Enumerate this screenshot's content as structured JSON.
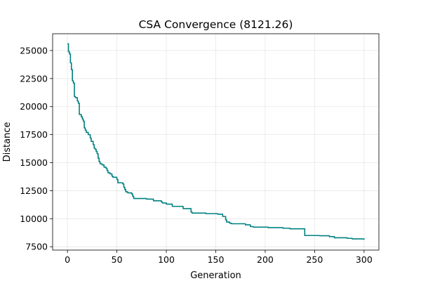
{
  "chart_data": {
    "type": "line",
    "title": "CSA Convergence (8121.26)",
    "xlabel": "Generation",
    "ylabel": "Distance",
    "xlim": [
      -15,
      315
    ],
    "ylim": [
      7200,
      26500
    ],
    "xticks": [
      0,
      50,
      100,
      150,
      200,
      250,
      300
    ],
    "yticks": [
      7500,
      10000,
      12500,
      15000,
      17500,
      20000,
      22500,
      25000
    ],
    "grid": true,
    "series": [
      {
        "color": "#008080",
        "step": true,
        "points": [
          [
            0,
            25600
          ],
          [
            1,
            24900
          ],
          [
            2,
            24700
          ],
          [
            3,
            23900
          ],
          [
            4,
            23300
          ],
          [
            5,
            22300
          ],
          [
            6,
            22100
          ],
          [
            7,
            20900
          ],
          [
            8,
            20800
          ],
          [
            10,
            20500
          ],
          [
            11,
            20300
          ],
          [
            12,
            19300
          ],
          [
            14,
            19100
          ],
          [
            15,
            18900
          ],
          [
            16,
            18700
          ],
          [
            17,
            18100
          ],
          [
            18,
            17900
          ],
          [
            19,
            17700
          ],
          [
            21,
            17500
          ],
          [
            23,
            17200
          ],
          [
            24,
            16900
          ],
          [
            26,
            16600
          ],
          [
            27,
            16300
          ],
          [
            28,
            16200
          ],
          [
            29,
            16000
          ],
          [
            30,
            15800
          ],
          [
            31,
            15400
          ],
          [
            32,
            15100
          ],
          [
            33,
            14900
          ],
          [
            35,
            14800
          ],
          [
            37,
            14600
          ],
          [
            39,
            14500
          ],
          [
            40,
            14300
          ],
          [
            41,
            14100
          ],
          [
            43,
            14000
          ],
          [
            45,
            13800
          ],
          [
            46,
            13700
          ],
          [
            50,
            13500
          ],
          [
            51,
            13200
          ],
          [
            56,
            13100
          ],
          [
            57,
            12800
          ],
          [
            58,
            12600
          ],
          [
            59,
            12400
          ],
          [
            61,
            12300
          ],
          [
            65,
            12200
          ],
          [
            66,
            12000
          ],
          [
            67,
            11800
          ],
          [
            80,
            11750
          ],
          [
            87,
            11600
          ],
          [
            95,
            11500
          ],
          [
            96,
            11400
          ],
          [
            100,
            11300
          ],
          [
            106,
            11100
          ],
          [
            117,
            10900
          ],
          [
            125,
            10600
          ],
          [
            126,
            10500
          ],
          [
            140,
            10450
          ],
          [
            152,
            10400
          ],
          [
            157,
            10200
          ],
          [
            160,
            9900
          ],
          [
            161,
            9700
          ],
          [
            164,
            9600
          ],
          [
            166,
            9550
          ],
          [
            180,
            9450
          ],
          [
            185,
            9300
          ],
          [
            188,
            9250
          ],
          [
            203,
            9200
          ],
          [
            218,
            9150
          ],
          [
            225,
            9100
          ],
          [
            240,
            8500
          ],
          [
            255,
            8480
          ],
          [
            265,
            8400
          ],
          [
            270,
            8300
          ],
          [
            283,
            8250
          ],
          [
            288,
            8200
          ],
          [
            300,
            8121
          ]
        ]
      }
    ]
  }
}
